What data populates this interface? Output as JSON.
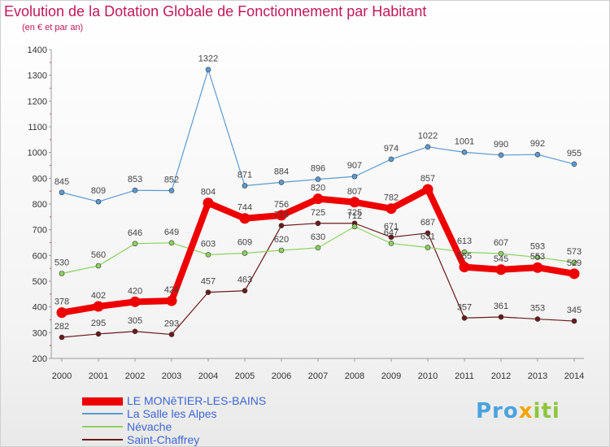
{
  "title": "Evolution de la Dotation Globale de Fonctionnement par Habitant",
  "subtitle": "(en € et par an)",
  "logo": [
    "Pro",
    "x",
    "iti"
  ],
  "chart_data": {
    "type": "line",
    "x": [
      "2000",
      "2001",
      "2002",
      "2003",
      "2004",
      "2005",
      "2006",
      "2007",
      "2008",
      "2009",
      "2010",
      "2011",
      "2012",
      "2013",
      "2014"
    ],
    "ylim": [
      200,
      1400
    ],
    "yticks": [
      200,
      300,
      400,
      500,
      600,
      700,
      800,
      900,
      1000,
      1100,
      1200,
      1300,
      1400
    ],
    "grid": false,
    "legend_position": "bottom-left",
    "series": [
      {
        "name": "LE MONêTIER-LES-BAINS",
        "color": "#ee0000",
        "values": [
          378,
          402,
          420,
          424,
          804,
          744,
          756,
          820,
          807,
          782,
          857,
          555,
          545,
          553,
          529
        ]
      },
      {
        "name": "La Salle les Alpes",
        "color": "#5b9bd5",
        "values": [
          845,
          809,
          853,
          852,
          1322,
          871,
          884,
          896,
          907,
          974,
          1022,
          1001,
          990,
          992,
          955
        ]
      },
      {
        "name": "Névache",
        "color": "#8dd35f",
        "values": [
          530,
          560,
          646,
          649,
          603,
          609,
          620,
          630,
          712,
          647,
          631,
          613,
          607,
          593,
          573
        ]
      },
      {
        "name": "Saint-Chaffrey",
        "color": "#6b1a1a",
        "values": [
          282,
          295,
          305,
          293,
          457,
          463,
          716,
          725,
          725,
          671,
          687,
          357,
          361,
          353,
          345
        ]
      }
    ]
  }
}
